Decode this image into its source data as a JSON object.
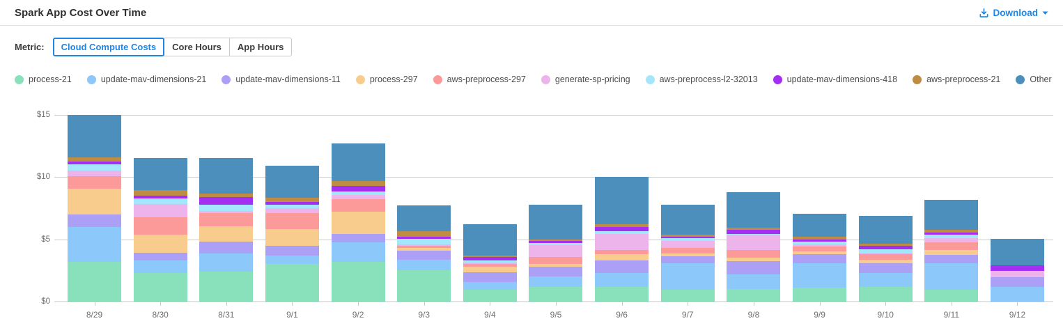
{
  "header": {
    "title": "Spark App Cost Over Time",
    "download_label": "Download"
  },
  "metric": {
    "label": "Metric:",
    "tabs": [
      {
        "label": "Cloud Compute Costs",
        "selected": true
      },
      {
        "label": "Core Hours",
        "selected": false
      },
      {
        "label": "App Hours",
        "selected": false
      }
    ]
  },
  "colors": {
    "accent_blue": "#1E87E5",
    "gridline": "#CDCDCD",
    "axis_text": "#6F6F6F",
    "legend_text": "#4B4B4B"
  },
  "chart_data": {
    "type": "bar",
    "stacked": true,
    "title": "Spark App Cost Over Time",
    "xlabel": "",
    "ylabel": "Cloud Compute Costs ($)",
    "ylim": [
      0,
      15
    ],
    "grid": true,
    "legend_position": "top",
    "yticks": [
      {
        "value": 0,
        "label": "$0"
      },
      {
        "value": 5,
        "label": "$5"
      },
      {
        "value": 10,
        "label": "$10"
      },
      {
        "value": 15,
        "label": "$15"
      }
    ],
    "categories": [
      "8/29",
      "8/30",
      "8/31",
      "9/1",
      "9/2",
      "9/3",
      "9/4",
      "9/5",
      "9/6",
      "9/7",
      "9/8",
      "9/9",
      "9/10",
      "9/11",
      "9/12"
    ],
    "series": [
      {
        "name": "process-21",
        "color": "#89E1BC",
        "values": [
          3.2,
          2.3,
          2.4,
          3.0,
          3.2,
          2.5,
          0.95,
          1.15,
          1.2,
          0.95,
          1.0,
          1.1,
          1.15,
          0.95,
          0
        ]
      },
      {
        "name": "update-mav-dimensions-21",
        "color": "#8CC8FA",
        "values": [
          2.8,
          1.0,
          1.45,
          0.7,
          1.55,
          0.85,
          0.6,
          0.85,
          1.1,
          2.15,
          1.2,
          2.0,
          1.15,
          2.15,
          1.15
        ]
      },
      {
        "name": "update-mav-dimensions-11",
        "color": "#ACA0F6",
        "values": [
          1.0,
          0.6,
          0.95,
          0.8,
          0.7,
          0.75,
          0.8,
          0.8,
          1.0,
          0.55,
          1.05,
          0.7,
          0.8,
          0.65,
          0.8
        ]
      },
      {
        "name": "process-297",
        "color": "#F8CC8C",
        "values": [
          2.05,
          1.45,
          1.25,
          1.3,
          1.75,
          0.2,
          0.45,
          0.2,
          0.5,
          0.2,
          0.3,
          0.25,
          0.25,
          0.4,
          0
        ]
      },
      {
        "name": "aws-preprocess-297",
        "color": "#FC9A9A",
        "values": [
          1.0,
          1.45,
          1.05,
          1.3,
          1.05,
          0.2,
          0.2,
          0.6,
          0.35,
          0.45,
          0.6,
          0.4,
          0.45,
          0.6,
          0
        ]
      },
      {
        "name": "generate-sp-pricing",
        "color": "#ECB4EA",
        "values": [
          0.45,
          1.05,
          0.2,
          0.4,
          0.3,
          0.1,
          0.15,
          0.95,
          1.3,
          0.6,
          1.2,
          0.15,
          0.15,
          0.35,
          0.5
        ]
      },
      {
        "name": "aws-preprocess-l2-32013",
        "color": "#A4E6FC",
        "values": [
          0.55,
          0.45,
          0.5,
          0.3,
          0.3,
          0.45,
          0.15,
          0.15,
          0.2,
          0.2,
          0.1,
          0.2,
          0.25,
          0.25,
          0
        ]
      },
      {
        "name": "update-mav-dimensions-418",
        "color": "#A52EF3",
        "values": [
          0.2,
          0.2,
          0.6,
          0.2,
          0.45,
          0.15,
          0.3,
          0.15,
          0.35,
          0.1,
          0.3,
          0.2,
          0.3,
          0.2,
          0.45
        ]
      },
      {
        "name": "aws-preprocess-21",
        "color": "#BE8C42",
        "values": [
          0.35,
          0.45,
          0.3,
          0.35,
          0.4,
          0.45,
          0.1,
          0.15,
          0.2,
          0.2,
          0.2,
          0.2,
          0.15,
          0.2,
          0
        ]
      },
      {
        "name": "Other",
        "color": "#4C8FBC",
        "values": [
          3.4,
          2.6,
          2.85,
          2.55,
          3.0,
          2.1,
          2.5,
          2.8,
          3.8,
          2.4,
          2.85,
          1.85,
          2.25,
          2.45,
          2.15
        ]
      }
    ]
  }
}
